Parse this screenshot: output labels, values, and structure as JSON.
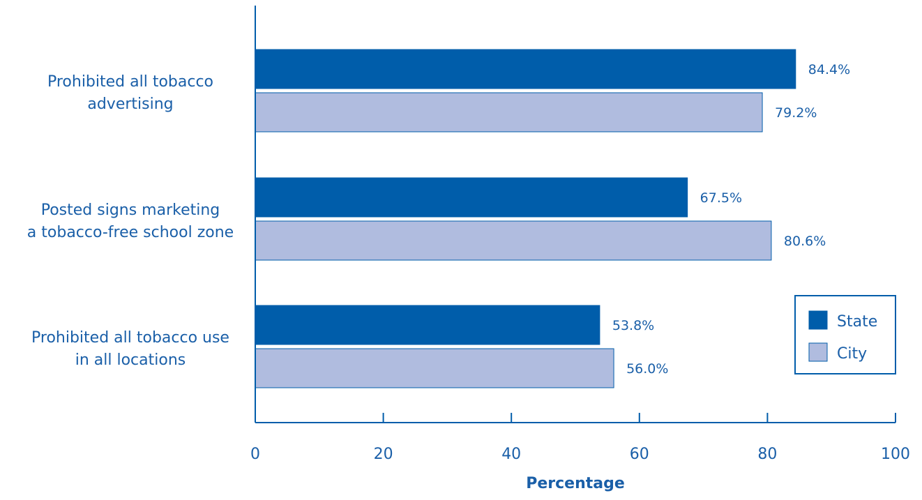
{
  "chart_data": {
    "type": "bar",
    "orientation": "horizontal",
    "categories": [
      [
        "Prohibited all tobacco",
        "advertising"
      ],
      [
        "Posted signs marketing",
        "a tobacco-free school zone"
      ],
      [
        "Prohibited all tobacco use",
        "in all locations"
      ]
    ],
    "series": [
      {
        "name": "State",
        "values": [
          84.4,
          67.5,
          53.8
        ],
        "labels": [
          "84.4%",
          "67.5%",
          "53.8%"
        ],
        "color": "#005daa"
      },
      {
        "name": "City",
        "values": [
          79.2,
          80.6,
          56.0
        ],
        "labels": [
          "79.2%",
          "80.6%",
          "56.0%"
        ],
        "color": "#b0bcdf"
      }
    ],
    "xlabel": "Percentage",
    "xlim": [
      0,
      100
    ],
    "xticks": [
      "0",
      "20",
      "40",
      "60",
      "80",
      "100"
    ],
    "legend_position": "right",
    "grid": false,
    "axis_color": "#005daa",
    "text_color": "#1a5fa8"
  }
}
